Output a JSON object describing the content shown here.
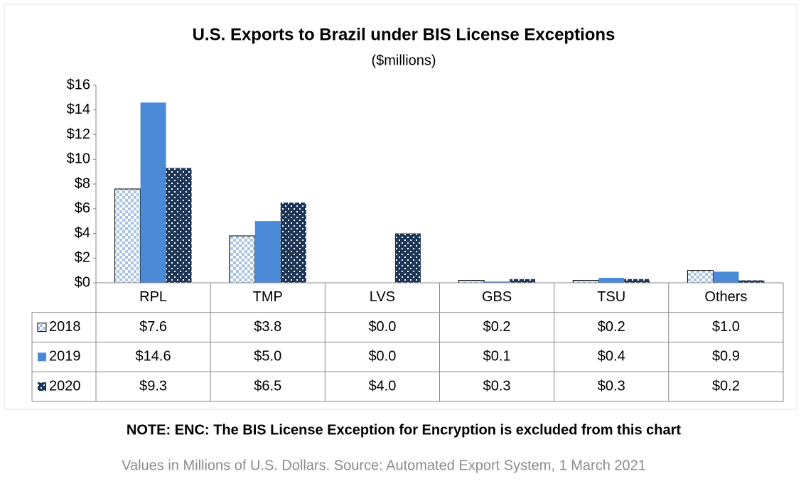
{
  "chart_data": {
    "type": "bar",
    "title": "U.S. Exports to Brazil under BIS License Exceptions",
    "subtitle": "($millions)",
    "categories": [
      "RPL",
      "TMP",
      "LVS",
      "GBS",
      "TSU",
      "Others"
    ],
    "series": [
      {
        "name": "2018",
        "color": "#a8c3e6",
        "values": [
          7.6,
          3.8,
          0.0,
          0.2,
          0.2,
          1.0
        ],
        "value_labels": [
          "$7.6",
          "$3.8",
          "$0.0",
          "$0.2",
          "$0.2",
          "$1.0"
        ]
      },
      {
        "name": "2019",
        "color": "#4a8ad6",
        "values": [
          14.6,
          5.0,
          0.0,
          0.1,
          0.4,
          0.9
        ],
        "value_labels": [
          "$14.6",
          "$5.0",
          "$0.0",
          "$0.1",
          "$0.4",
          "$0.9"
        ]
      },
      {
        "name": "2020",
        "color": "#1d3557",
        "values": [
          9.3,
          6.5,
          4.0,
          0.3,
          0.3,
          0.2
        ],
        "value_labels": [
          "$9.3",
          "$6.5",
          "$4.0",
          "$0.3",
          "$0.3",
          "$0.2"
        ]
      }
    ],
    "ylim": [
      0,
      16
    ],
    "yticks": [
      {
        "value": 0,
        "label": "$0"
      },
      {
        "value": 2,
        "label": "$2"
      },
      {
        "value": 4,
        "label": "$4"
      },
      {
        "value": 6,
        "label": "$6"
      },
      {
        "value": 8,
        "label": "$8"
      },
      {
        "value": 10,
        "label": "$10"
      },
      {
        "value": 12,
        "label": "$12"
      },
      {
        "value": 14,
        "label": "$14"
      },
      {
        "value": 16,
        "label": "$16"
      }
    ],
    "note": "NOTE: ENC: The BIS License Exception for Encryption is excluded from this chart",
    "source": "Values in Millions of U.S. Dollars. Source: Automated Export System, 1 March 2021"
  }
}
